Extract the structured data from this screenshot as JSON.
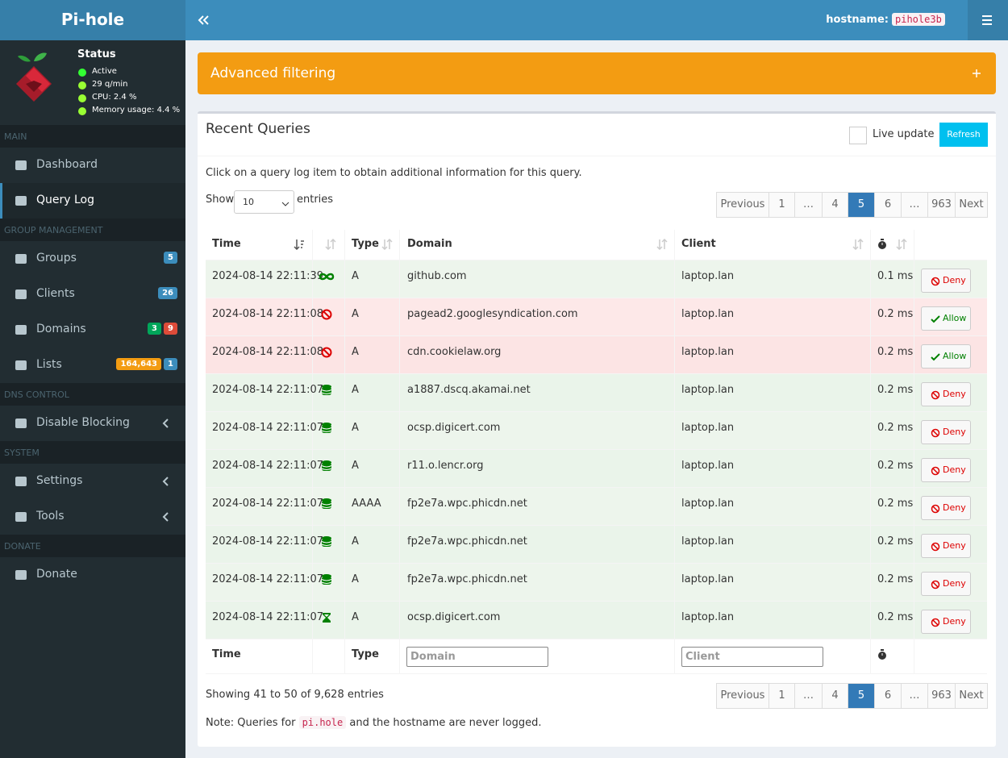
{
  "header": {
    "brand": "Pi-hole",
    "hostname_label": "hostname:",
    "hostname": "pihole3b"
  },
  "status": {
    "title": "Status",
    "items": [
      "Active",
      "29 q/min",
      "CPU: 2.4 %",
      "Memory usage: 4.4 %"
    ]
  },
  "sidebar": [
    {
      "heading": "MAIN",
      "items": [
        {
          "label": "Dashboard"
        },
        {
          "label": "Query Log",
          "active": true
        }
      ]
    },
    {
      "heading": "GROUP MANAGEMENT",
      "items": [
        {
          "label": "Groups",
          "badges": [
            {
              "text": "5",
              "color": "#3c8dbc"
            }
          ]
        },
        {
          "label": "Clients",
          "badges": [
            {
              "text": "26",
              "color": "#3c8dbc"
            }
          ]
        },
        {
          "label": "Domains",
          "badges": [
            {
              "text": "3",
              "color": "#00a65a"
            },
            {
              "text": "9",
              "color": "#dd4b39"
            }
          ]
        },
        {
          "label": "Lists",
          "badges": [
            {
              "text": "164,643",
              "color": "#f39c12"
            },
            {
              "text": "1",
              "color": "#3c8dbc"
            }
          ]
        }
      ]
    },
    {
      "heading": "DNS CONTROL",
      "items": [
        {
          "label": "Disable Blocking",
          "submenu": true
        }
      ]
    },
    {
      "heading": "SYSTEM",
      "items": [
        {
          "label": "Settings",
          "submenu": true
        },
        {
          "label": "Tools",
          "submenu": true
        }
      ]
    },
    {
      "heading": "DONATE",
      "items": [
        {
          "label": "Donate"
        }
      ]
    }
  ],
  "filter": {
    "title": "Advanced filtering"
  },
  "queries": {
    "title": "Recent Queries",
    "live_update": "Live update",
    "refresh": "Refresh",
    "info": "Click on a query log item to obtain additional information for this query.",
    "show": "Show",
    "length": "10",
    "entries": "entries",
    "pagination": [
      "Previous",
      "1",
      "…",
      "4",
      "5",
      "6",
      "…",
      "963",
      "Next"
    ],
    "active_page": "5",
    "columns": {
      "time": "Time",
      "type": "Type",
      "domain": "Domain",
      "client": "Client"
    },
    "rows": [
      {
        "time": "2024-08-14 22:11:39",
        "icon": "infinity",
        "type": "A",
        "domain": "github.com",
        "client": "laptop.lan",
        "reply": "0.1 ms",
        "action": "Deny"
      },
      {
        "time": "2024-08-14 22:11:08",
        "icon": "ban",
        "type": "A",
        "domain": "pagead2.googlesyndication.com",
        "client": "laptop.lan",
        "reply": "0.2 ms",
        "action": "Allow"
      },
      {
        "time": "2024-08-14 22:11:08",
        "icon": "ban",
        "type": "A",
        "domain": "cdn.cookielaw.org",
        "client": "laptop.lan",
        "reply": "0.2 ms",
        "action": "Allow"
      },
      {
        "time": "2024-08-14 22:11:07",
        "icon": "database",
        "type": "A",
        "domain": "a1887.dscq.akamai.net",
        "client": "laptop.lan",
        "reply": "0.2 ms",
        "action": "Deny"
      },
      {
        "time": "2024-08-14 22:11:07",
        "icon": "database",
        "type": "A",
        "domain": "ocsp.digicert.com",
        "client": "laptop.lan",
        "reply": "0.2 ms",
        "action": "Deny"
      },
      {
        "time": "2024-08-14 22:11:07",
        "icon": "database",
        "type": "A",
        "domain": "r11.o.lencr.org",
        "client": "laptop.lan",
        "reply": "0.2 ms",
        "action": "Deny"
      },
      {
        "time": "2024-08-14 22:11:07",
        "icon": "database",
        "type": "AAAA",
        "domain": "fp2e7a.wpc.phicdn.net",
        "client": "laptop.lan",
        "reply": "0.2 ms",
        "action": "Deny"
      },
      {
        "time": "2024-08-14 22:11:07",
        "icon": "database",
        "type": "A",
        "domain": "fp2e7a.wpc.phicdn.net",
        "client": "laptop.lan",
        "reply": "0.2 ms",
        "action": "Deny"
      },
      {
        "time": "2024-08-14 22:11:07",
        "icon": "database",
        "type": "A",
        "domain": "fp2e7a.wpc.phicdn.net",
        "client": "laptop.lan",
        "reply": "0.2 ms",
        "action": "Deny"
      },
      {
        "time": "2024-08-14 22:11:07",
        "icon": "hourglass",
        "type": "A",
        "domain": "ocsp.digicert.com",
        "client": "laptop.lan",
        "reply": "0.2 ms",
        "action": "Deny"
      }
    ],
    "footer": {
      "time": "Time",
      "type": "Type",
      "domain_placeholder": "Domain",
      "client_placeholder": "Client"
    },
    "summary": "Showing 41 to 50 of 9,628 entries",
    "note_pre": "Note: Queries for",
    "note_code": "pi.hole",
    "note_post": "and the hostname are never logged."
  }
}
